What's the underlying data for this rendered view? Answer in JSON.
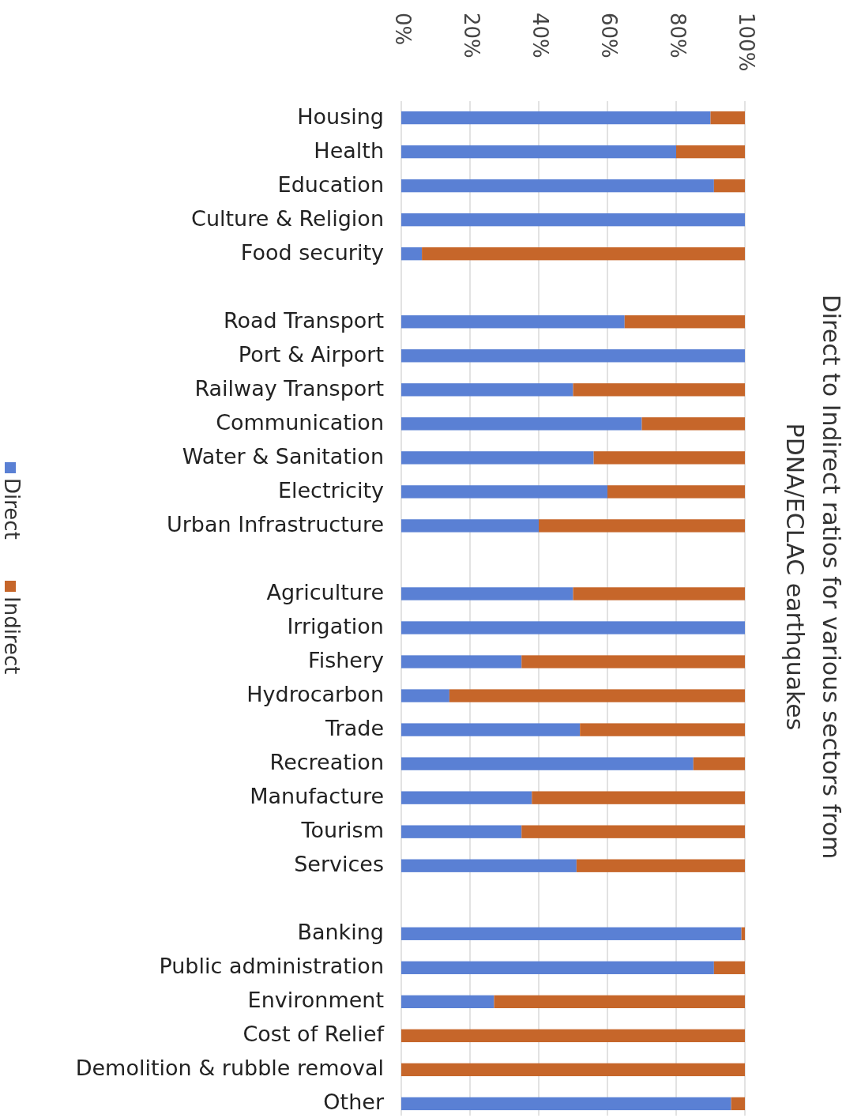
{
  "chart_data": {
    "type": "bar",
    "orientation": "horizontal",
    "stacked": true,
    "title": "Direct to Indirect ratios for various sectors from\nPDNA/ECLAC earthquakes",
    "categories": [
      "Housing",
      "Health",
      "Education",
      "Culture & Religion",
      "Food security",
      null,
      "Road Transport",
      "Port & Airport",
      "Railway Transport",
      "Communication",
      "Water & Sanitation",
      "Electricity",
      "Urban Infrastructure",
      null,
      "Agriculture",
      "Irrigation",
      "Fishery",
      "Hydrocarbon",
      "Trade",
      "Recreation",
      "Manufacture",
      "Tourism",
      "Services",
      null,
      "Banking",
      "Public administration",
      "Environment",
      "Cost of Relief",
      "Demolition & rubble removal",
      "Other"
    ],
    "series": [
      {
        "name": "Direct",
        "color": "#5a80d4",
        "values": [
          90,
          80,
          91,
          100,
          6,
          null,
          65,
          100,
          50,
          70,
          56,
          60,
          40,
          null,
          50,
          100,
          35,
          14,
          52,
          85,
          38,
          35,
          51,
          null,
          99,
          91,
          27,
          0,
          0,
          96
        ]
      },
      {
        "name": "Indirect",
        "color": "#c6662a",
        "values": [
          10,
          20,
          9,
          0,
          94,
          null,
          35,
          0,
          50,
          30,
          44,
          40,
          60,
          null,
          50,
          0,
          65,
          86,
          48,
          15,
          62,
          65,
          49,
          null,
          1,
          9,
          73,
          100,
          100,
          4
        ]
      }
    ],
    "xlim": [
      0,
      100
    ],
    "xticks": [
      {
        "value": 0,
        "label": "0%"
      },
      {
        "value": 20,
        "label": "20%"
      },
      {
        "value": 40,
        "label": "40%"
      },
      {
        "value": 60,
        "label": "60%"
      },
      {
        "value": 80,
        "label": "80%"
      },
      {
        "value": 100,
        "label": "100%"
      }
    ],
    "grid": "x",
    "legend": "left"
  }
}
